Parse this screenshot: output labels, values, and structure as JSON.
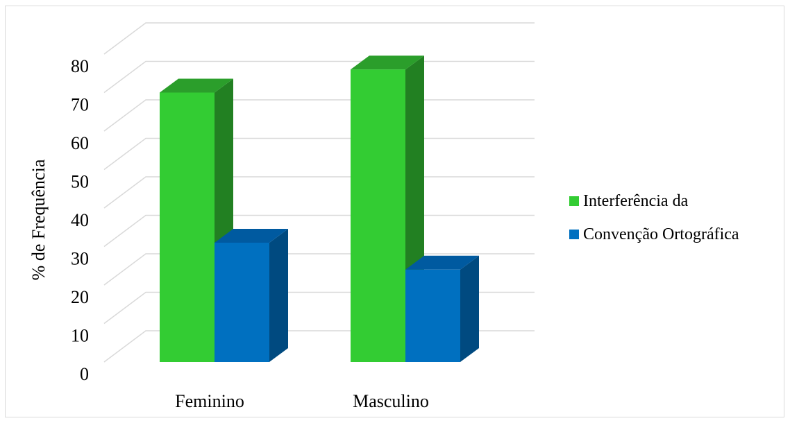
{
  "chart_data": {
    "type": "bar",
    "style": "3d-clustered-column",
    "categories": [
      "Feminino",
      "Masculino"
    ],
    "series": [
      {
        "name": "Interferência da",
        "values": [
          70,
          76
        ],
        "color": "#33cc33",
        "top_color": "#2b9e2b",
        "side_color": "#228022"
      },
      {
        "name": "Convenção Ortográfica",
        "values": [
          31,
          24
        ],
        "color": "#0070c0",
        "top_color": "#005aa0",
        "side_color": "#004a80"
      }
    ],
    "title": "",
    "xlabel": "",
    "ylabel": "% de Frequência",
    "ylim": [
      0,
      80
    ],
    "yticks": [
      0,
      10,
      20,
      30,
      40,
      50,
      60,
      70,
      80
    ],
    "grid": true,
    "legend_position": "right"
  }
}
